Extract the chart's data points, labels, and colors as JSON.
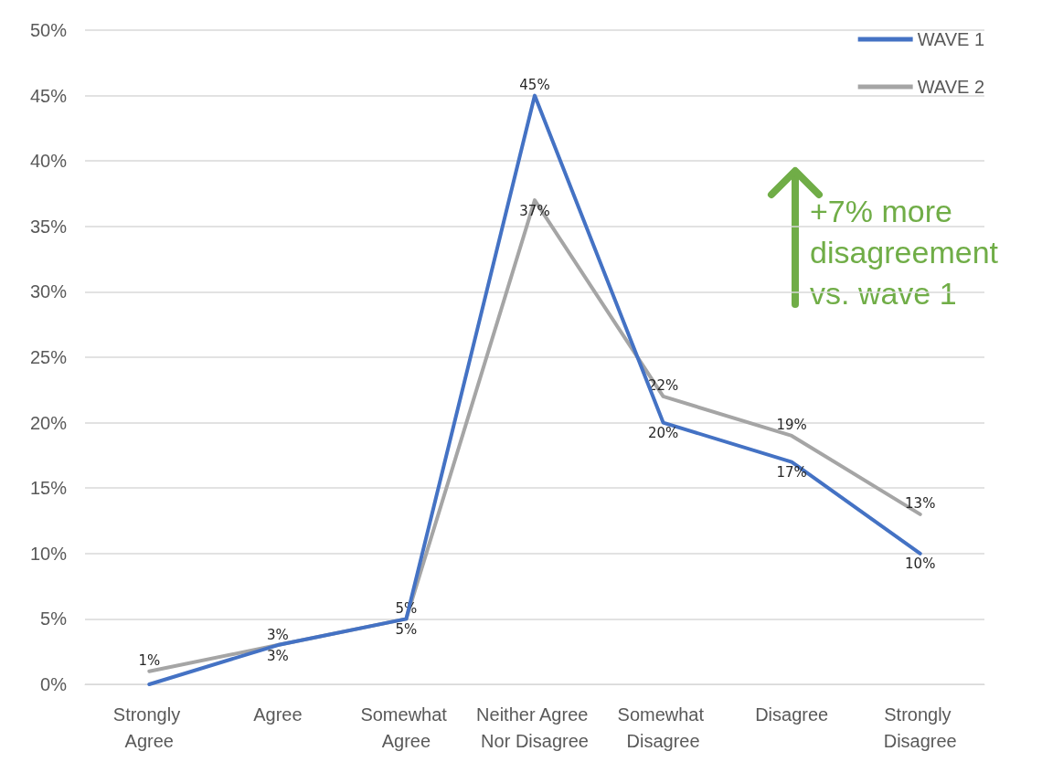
{
  "chart_data": {
    "type": "line",
    "categories": [
      "Strongly Agree",
      "Agree",
      "Somewhat Agree",
      "Neither Agree Nor Disagree",
      "Somewhat Disagree",
      "Disagree",
      "Strongly Disagree"
    ],
    "series": [
      {
        "name": "WAVE 1",
        "color": "#4472c4",
        "values": [
          0,
          3,
          5,
          45,
          20,
          17,
          10
        ],
        "value_labels": [
          null,
          "3%",
          "5%",
          "45%",
          "20%",
          "17%",
          "10%"
        ]
      },
      {
        "name": "WAVE 2",
        "color": "#a5a5a5",
        "values": [
          1,
          3,
          5,
          37,
          22,
          19,
          13
        ],
        "value_labels": [
          "1%",
          "3%",
          "5%",
          "37%",
          "22%",
          "19%",
          "13%"
        ]
      }
    ],
    "ylim": [
      0,
      50
    ],
    "yticks": [
      {
        "value": 0,
        "label": "0%"
      },
      {
        "value": 5,
        "label": "5%"
      },
      {
        "value": 10,
        "label": "10%"
      },
      {
        "value": 15,
        "label": "15%"
      },
      {
        "value": 20,
        "label": "20%"
      },
      {
        "value": 25,
        "label": "25%"
      },
      {
        "value": 30,
        "label": "30%"
      },
      {
        "value": 35,
        "label": "35%"
      },
      {
        "value": 40,
        "label": "40%"
      },
      {
        "value": 45,
        "label": "45%"
      },
      {
        "value": 50,
        "label": "50%"
      }
    ],
    "grid": "y",
    "legend": "top right",
    "marker": "none",
    "line_style": "solid",
    "annotations": [
      "+7% more disagreement vs. wave 1"
    ]
  }
}
